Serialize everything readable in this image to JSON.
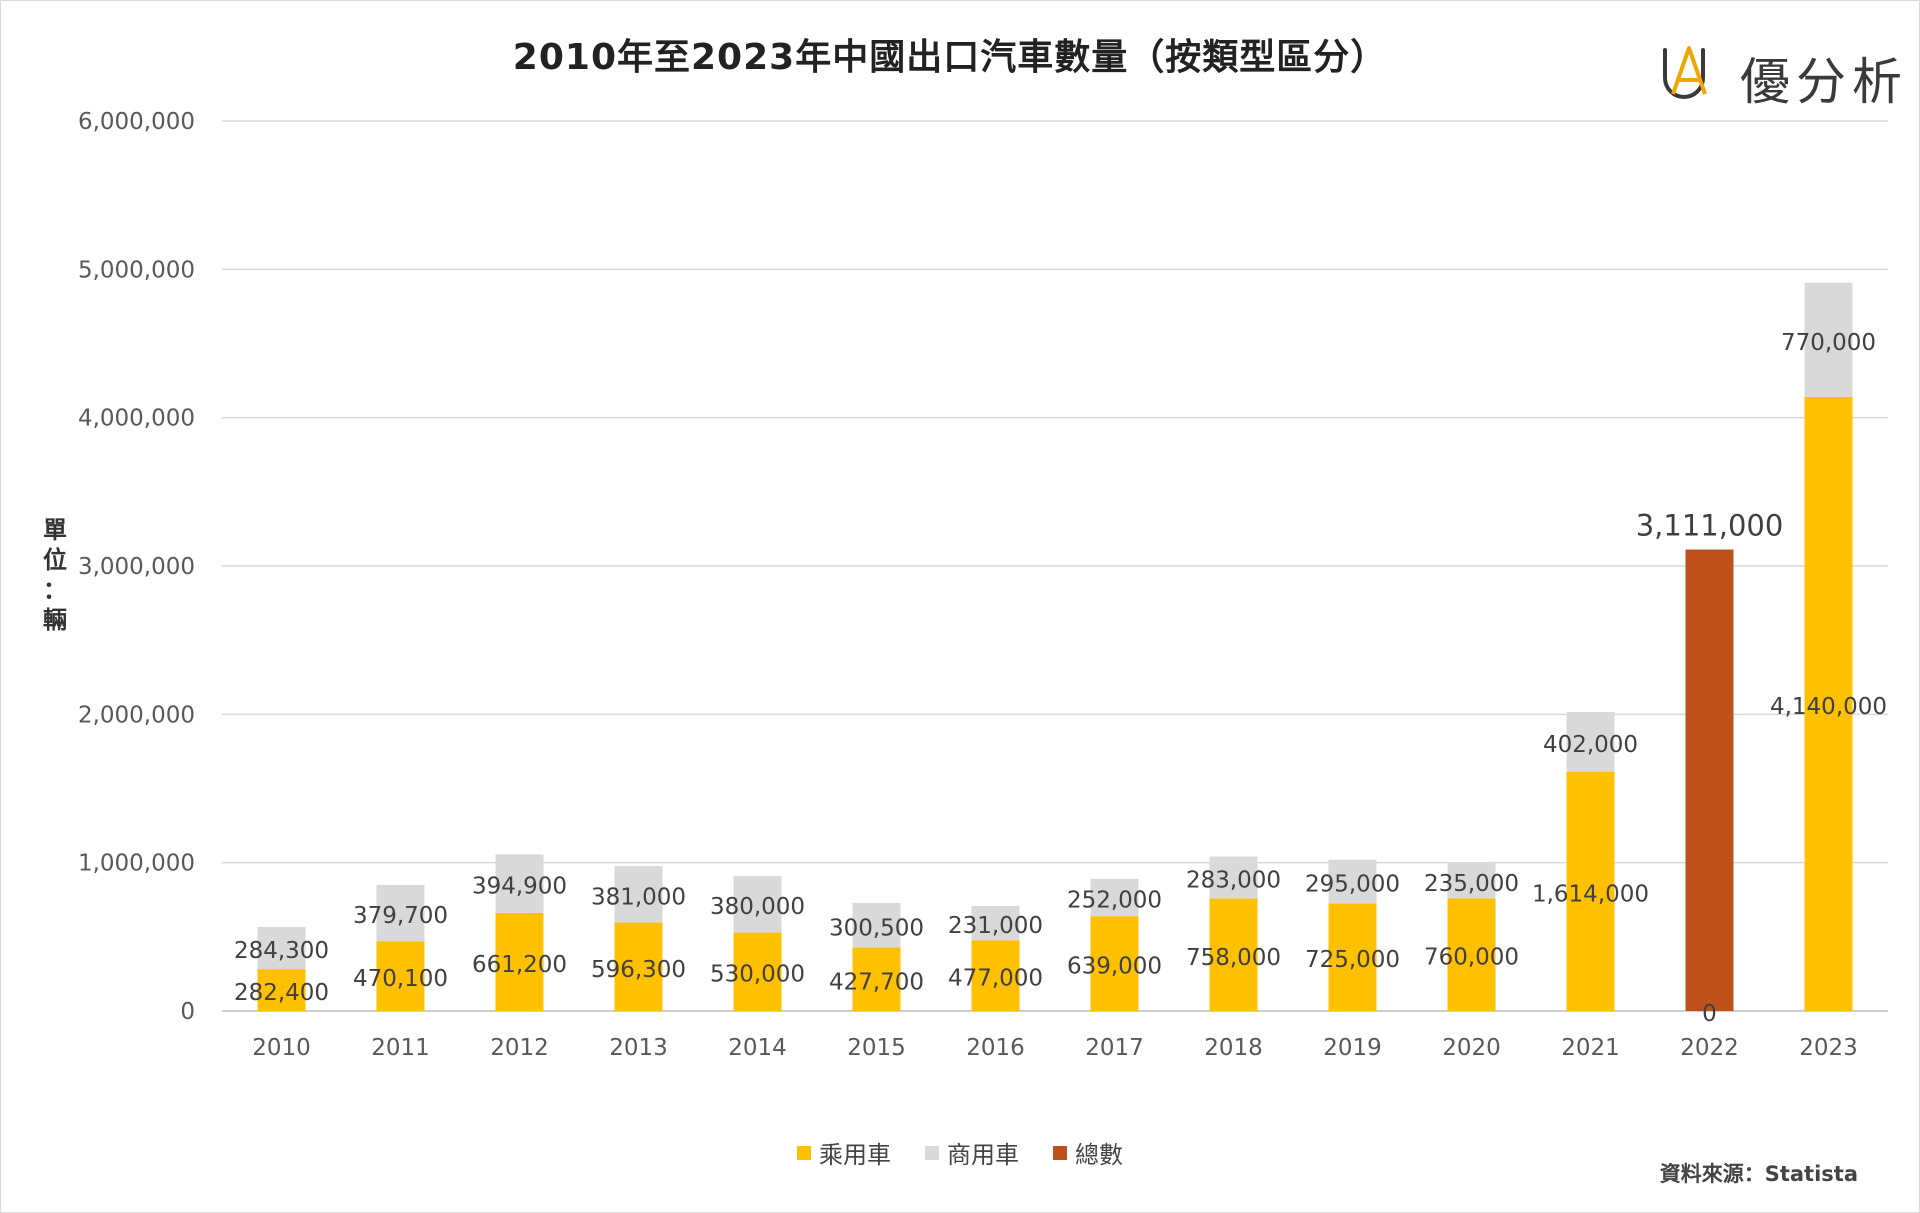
{
  "title": "2010年至2023年中國出口汽車數量（按類型區分）",
  "logo": {
    "text": "優分析",
    "mark": "UA"
  },
  "y_unit": [
    "單",
    "位",
    "：",
    "輛"
  ],
  "source": "資料來源：Statista",
  "colors": {
    "passenger": "#ffc000",
    "commercial": "#d9d9d9",
    "total": "#c0501a",
    "logo_accent": "#f0a500",
    "logo_ink": "#3a3a3a"
  },
  "chart_data": {
    "type": "bar",
    "stacked": true,
    "title": "2010年至2023年中國出口汽車數量（按類型區分）",
    "ylabel": "單位：輛",
    "xlabel": "",
    "ylim": [
      0,
      6000000
    ],
    "yticks": [
      "0",
      "1,000,000",
      "2,000,000",
      "3,000,000",
      "4,000,000",
      "5,000,000",
      "6,000,000"
    ],
    "ytick_values": [
      0,
      1000000,
      2000000,
      3000000,
      4000000,
      5000000,
      6000000
    ],
    "grid": true,
    "legend_position": "bottom",
    "categories": [
      "2010",
      "2011",
      "2012",
      "2013",
      "2014",
      "2015",
      "2016",
      "2017",
      "2018",
      "2019",
      "2020",
      "2021",
      "2022",
      "2023"
    ],
    "series": [
      {
        "name": "乘用車",
        "color": "#ffc000",
        "values": [
          282400,
          470100,
          661200,
          596300,
          530000,
          427700,
          477000,
          639000,
          758000,
          725000,
          760000,
          1614000,
          0,
          4140000
        ],
        "labels": [
          "282,400",
          "470,100",
          "661,200",
          "596,300",
          "530,000",
          "427,700",
          "477,000",
          "639,000",
          "758,000",
          "725,000",
          "760,000",
          "1,614,000",
          "0",
          "4,140,000"
        ]
      },
      {
        "name": "商用車",
        "color": "#d9d9d9",
        "values": [
          284300,
          379700,
          394900,
          381000,
          380000,
          300500,
          231000,
          252000,
          283000,
          295000,
          235000,
          402000,
          null,
          770000
        ],
        "labels": [
          "284,300",
          "379,700",
          "394,900",
          "381,000",
          "380,000",
          "300,500",
          "231,000",
          "252,000",
          "283,000",
          "295,000",
          "235,000",
          "402,000",
          "",
          "770,000"
        ]
      },
      {
        "name": "總數",
        "color": "#c0501a",
        "values": [
          null,
          null,
          null,
          null,
          null,
          null,
          null,
          null,
          null,
          null,
          null,
          null,
          3111000,
          null
        ],
        "labels": [
          "",
          "",
          "",
          "",
          "",
          "",
          "",
          "",
          "",
          "",
          "",
          "",
          "3,111,000",
          ""
        ]
      }
    ]
  }
}
